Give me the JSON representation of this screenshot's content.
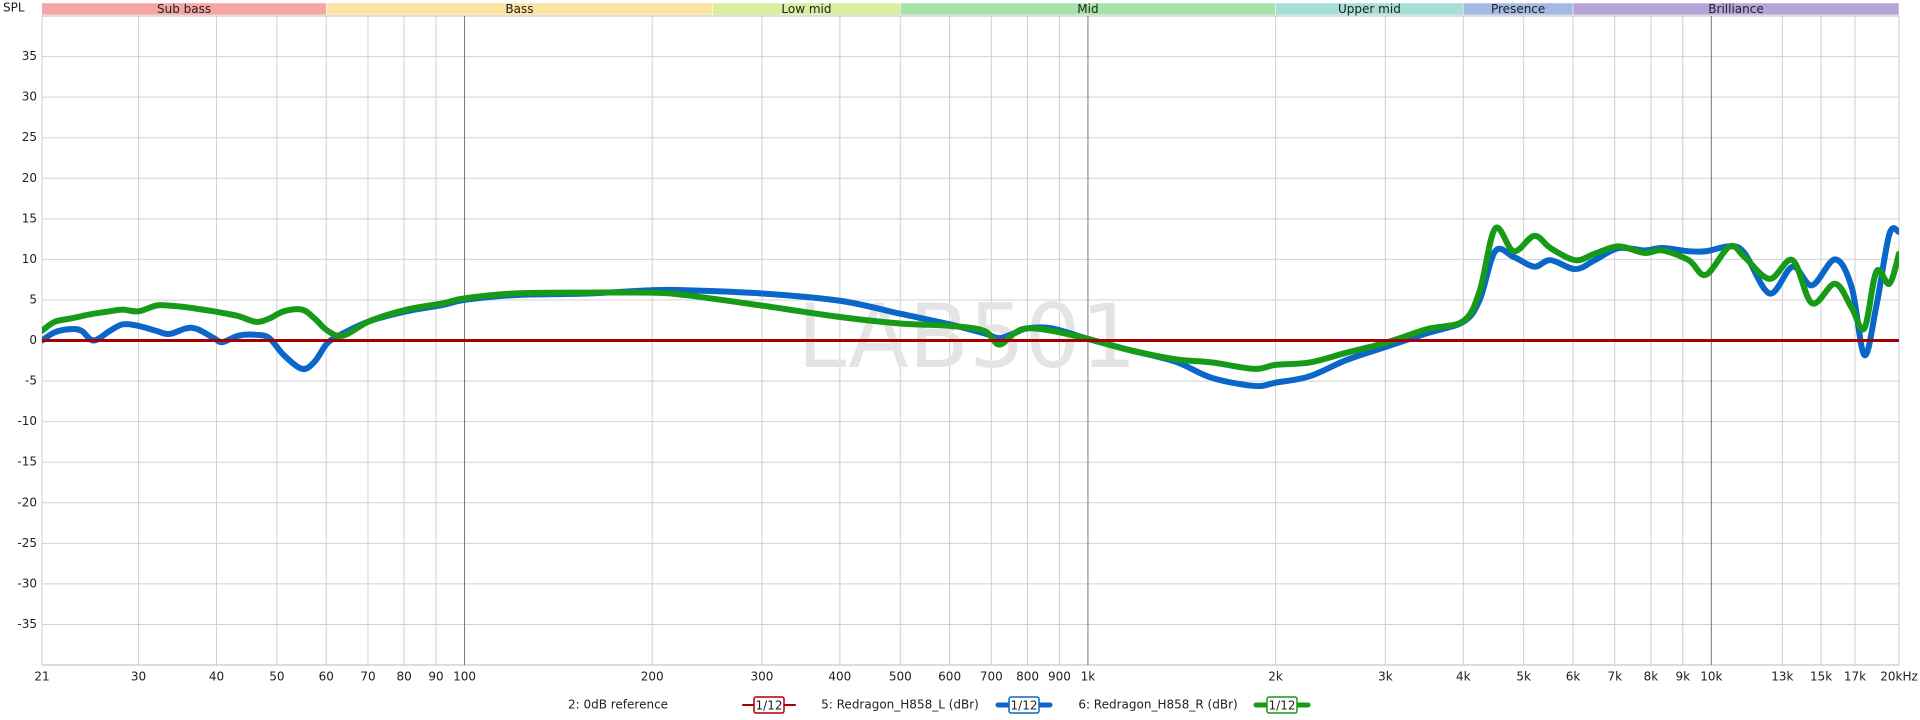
{
  "chart_data": {
    "type": "line",
    "y_label": "SPL",
    "watermark": "LAB501",
    "log_x": true,
    "grid": true,
    "xlim": [
      21,
      20000
    ],
    "ylim": [
      -40,
      40
    ],
    "xticks": [
      21,
      30,
      40,
      50,
      60,
      70,
      80,
      90,
      100,
      200,
      300,
      400,
      500,
      600,
      700,
      800,
      900,
      {
        "value": 1000,
        "label": "1k"
      },
      {
        "value": 2000,
        "label": "2k"
      },
      {
        "value": 3000,
        "label": "3k"
      },
      {
        "value": 4000,
        "label": "4k"
      },
      {
        "value": 5000,
        "label": "5k"
      },
      {
        "value": 6000,
        "label": "6k"
      },
      {
        "value": 7000,
        "label": "7k"
      },
      {
        "value": 8000,
        "label": "8k"
      },
      {
        "value": 9000,
        "label": "9k"
      },
      {
        "value": 10000,
        "label": "10k"
      },
      {
        "value": 13000,
        "label": "13k"
      },
      {
        "value": 15000,
        "label": "15k"
      },
      {
        "value": 17000,
        "label": "17k"
      },
      {
        "value": 20000,
        "label": "20kHz"
      }
    ],
    "yticks": [
      -35,
      -30,
      -25,
      -20,
      -15,
      -10,
      -5,
      0,
      5,
      10,
      15,
      20,
      25,
      30,
      35
    ],
    "bands": [
      {
        "name": "Sub bass",
        "range": [
          20,
          60
        ],
        "color": "#f7a4a4"
      },
      {
        "name": "Bass",
        "range": [
          60,
          250
        ],
        "color": "#fbe3a2"
      },
      {
        "name": "Low mid",
        "range": [
          250,
          500
        ],
        "color": "#d9eea0"
      },
      {
        "name": "Mid",
        "range": [
          500,
          2000
        ],
        "color": "#a6e3a6"
      },
      {
        "name": "Upper mid",
        "range": [
          2000,
          4000
        ],
        "color": "#a5dfd8"
      },
      {
        "name": "Presence",
        "range": [
          4000,
          6000
        ],
        "color": "#a3b9e3"
      },
      {
        "name": "Brilliance",
        "range": [
          6000,
          20000
        ],
        "color": "#b7a4d6"
      }
    ],
    "x": [
      21,
      22,
      23.3,
      24.3,
      25.4,
      27,
      28.3,
      30,
      32,
      33.6,
      35.8,
      37.3,
      39.6,
      40.9,
      43.4,
      46.3,
      48.6,
      51.3,
      54.9,
      57.5,
      60.3,
      63.9,
      70.5,
      80.7,
      92.5,
      100,
      120.5,
      158,
      200,
      226,
      300,
      400,
      500,
      600,
      681,
      720,
      762,
      800,
      875,
      1000,
      1155,
      1380,
      1580,
      1850,
      2000,
      2270,
      2600,
      3000,
      3500,
      4000,
      4250,
      4500,
      4820,
      5200,
      5520,
      6050,
      6500,
      7100,
      7800,
      8350,
      9200,
      9800,
      10700,
      11300,
      12400,
      13500,
      14500,
      15800,
      16800,
      17600,
      18400,
      19300,
      20000
    ],
    "series": [
      {
        "name": "2: 0dB reference",
        "color": "#a80000",
        "smoothing": "1/12",
        "x": [
          21,
          20000
        ],
        "values": [
          0,
          0
        ]
      },
      {
        "name": "5: Redragon_H858_L (dBr)",
        "color": "#0a66c8",
        "smoothing": "1/12",
        "values": [
          0,
          1,
          1.4,
          1.2,
          0,
          1.2,
          2,
          1.8,
          1.2,
          0.8,
          1.5,
          1.4,
          0.3,
          -0.2,
          0.6,
          0.7,
          0.3,
          -1.8,
          -3.5,
          -2.6,
          -0.3,
          0.9,
          2.4,
          3.6,
          4.4,
          5,
          5.6,
          5.8,
          6.2,
          6.2,
          5.8,
          4.9,
          3.3,
          2,
          0.9,
          0.3,
          0.9,
          1.5,
          1.5,
          0.2,
          -1.1,
          -2.6,
          -4.6,
          -5.6,
          -5.2,
          -4.4,
          -2.4,
          -0.8,
          0.9,
          2.3,
          5,
          11,
          10.3,
          9.1,
          9.9,
          8.8,
          9.9,
          11.4,
          11.1,
          11.4,
          11,
          11,
          11.6,
          10.8,
          5.8,
          9.1,
          6.8,
          10,
          6.5,
          -1.8,
          4.3,
          13.1,
          13.4
        ]
      },
      {
        "name": "6: Redragon_H858_R (dBr)",
        "color": "#179a17",
        "smoothing": "1/12",
        "values": [
          1.2,
          2.3,
          2.7,
          3,
          3.3,
          3.6,
          3.8,
          3.6,
          4.3,
          4.3,
          4.1,
          3.9,
          3.6,
          3.4,
          3,
          2.3,
          2.7,
          3.6,
          3.8,
          2.7,
          1.2,
          0.6,
          2.4,
          3.8,
          4.6,
          5.2,
          5.8,
          5.9,
          5.9,
          5.6,
          4.3,
          2.9,
          2.1,
          1.8,
          1.2,
          -0.5,
          0.9,
          1.5,
          1.2,
          0.2,
          -1.1,
          -2.3,
          -2.7,
          -3.5,
          -3,
          -2.7,
          -1.5,
          -0.3,
          1.4,
          2.4,
          6.1,
          13.8,
          11,
          12.9,
          11.4,
          9.9,
          10.7,
          11.6,
          10.8,
          11.1,
          9.9,
          8.1,
          11.6,
          10.3,
          7.6,
          9.9,
          4.6,
          7,
          4,
          1.5,
          8.5,
          7,
          10.7
        ]
      }
    ]
  }
}
